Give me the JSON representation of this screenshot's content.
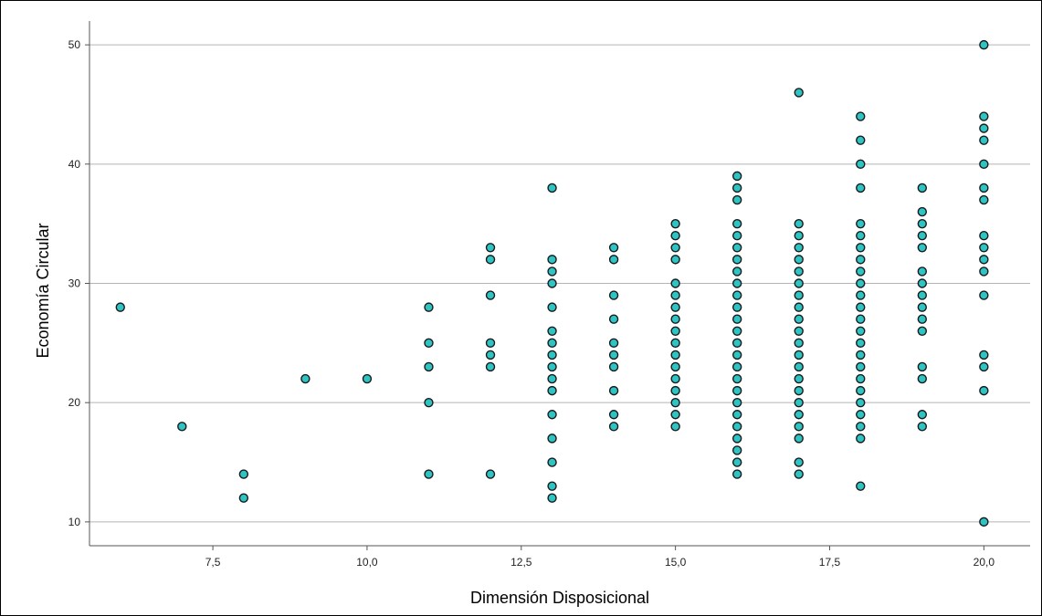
{
  "chart_data": {
    "type": "scatter",
    "title": "",
    "xlabel": "Dimensión Disposicional",
    "ylabel": "Economía Circular",
    "xlim": [
      5.5,
      20.75
    ],
    "ylim": [
      8,
      52
    ],
    "x_ticks": [
      7.5,
      10.0,
      12.5,
      15.0,
      17.5,
      20.0
    ],
    "x_tick_labels": [
      "7,5",
      "10,0",
      "12,5",
      "15,0",
      "17,5",
      "20,0"
    ],
    "y_ticks": [
      10,
      20,
      30,
      40,
      50
    ],
    "y_tick_labels": [
      "10",
      "20",
      "30",
      "40",
      "50"
    ],
    "grid": "horizontal",
    "colors": {
      "marker_fill": "#2ec4c4",
      "marker_edge": "#1a1a1a",
      "grid": "#b4b4b4",
      "axis": "#555555"
    },
    "points": [
      {
        "x": 6,
        "y": 28
      },
      {
        "x": 7,
        "y": 18
      },
      {
        "x": 8,
        "y": 14
      },
      {
        "x": 8,
        "y": 12
      },
      {
        "x": 9,
        "y": 22
      },
      {
        "x": 10,
        "y": 22
      },
      {
        "x": 11,
        "y": 28
      },
      {
        "x": 11,
        "y": 25
      },
      {
        "x": 11,
        "y": 23
      },
      {
        "x": 11,
        "y": 20
      },
      {
        "x": 11,
        "y": 14
      },
      {
        "x": 12,
        "y": 33
      },
      {
        "x": 12,
        "y": 32
      },
      {
        "x": 12,
        "y": 29
      },
      {
        "x": 12,
        "y": 25
      },
      {
        "x": 12,
        "y": 24
      },
      {
        "x": 12,
        "y": 23
      },
      {
        "x": 12,
        "y": 14
      },
      {
        "x": 13,
        "y": 38
      },
      {
        "x": 13,
        "y": 32
      },
      {
        "x": 13,
        "y": 31
      },
      {
        "x": 13,
        "y": 30
      },
      {
        "x": 13,
        "y": 28
      },
      {
        "x": 13,
        "y": 26
      },
      {
        "x": 13,
        "y": 25
      },
      {
        "x": 13,
        "y": 24
      },
      {
        "x": 13,
        "y": 23
      },
      {
        "x": 13,
        "y": 22
      },
      {
        "x": 13,
        "y": 21
      },
      {
        "x": 13,
        "y": 19
      },
      {
        "x": 13,
        "y": 17
      },
      {
        "x": 13,
        "y": 15
      },
      {
        "x": 13,
        "y": 13
      },
      {
        "x": 13,
        "y": 12
      },
      {
        "x": 14,
        "y": 33
      },
      {
        "x": 14,
        "y": 32
      },
      {
        "x": 14,
        "y": 29
      },
      {
        "x": 14,
        "y": 27
      },
      {
        "x": 14,
        "y": 25
      },
      {
        "x": 14,
        "y": 24
      },
      {
        "x": 14,
        "y": 23
      },
      {
        "x": 14,
        "y": 21
      },
      {
        "x": 14,
        "y": 19
      },
      {
        "x": 14,
        "y": 18
      },
      {
        "x": 15,
        "y": 35
      },
      {
        "x": 15,
        "y": 34
      },
      {
        "x": 15,
        "y": 33
      },
      {
        "x": 15,
        "y": 32
      },
      {
        "x": 15,
        "y": 30
      },
      {
        "x": 15,
        "y": 29
      },
      {
        "x": 15,
        "y": 28
      },
      {
        "x": 15,
        "y": 27
      },
      {
        "x": 15,
        "y": 26
      },
      {
        "x": 15,
        "y": 25
      },
      {
        "x": 15,
        "y": 24
      },
      {
        "x": 15,
        "y": 23
      },
      {
        "x": 15,
        "y": 22
      },
      {
        "x": 15,
        "y": 21
      },
      {
        "x": 15,
        "y": 20
      },
      {
        "x": 15,
        "y": 19
      },
      {
        "x": 15,
        "y": 18
      },
      {
        "x": 16,
        "y": 39
      },
      {
        "x": 16,
        "y": 38
      },
      {
        "x": 16,
        "y": 37
      },
      {
        "x": 16,
        "y": 35
      },
      {
        "x": 16,
        "y": 34
      },
      {
        "x": 16,
        "y": 33
      },
      {
        "x": 16,
        "y": 32
      },
      {
        "x": 16,
        "y": 31
      },
      {
        "x": 16,
        "y": 30
      },
      {
        "x": 16,
        "y": 29
      },
      {
        "x": 16,
        "y": 28
      },
      {
        "x": 16,
        "y": 27
      },
      {
        "x": 16,
        "y": 26
      },
      {
        "x": 16,
        "y": 25
      },
      {
        "x": 16,
        "y": 24
      },
      {
        "x": 16,
        "y": 23
      },
      {
        "x": 16,
        "y": 22
      },
      {
        "x": 16,
        "y": 21
      },
      {
        "x": 16,
        "y": 20
      },
      {
        "x": 16,
        "y": 19
      },
      {
        "x": 16,
        "y": 18
      },
      {
        "x": 16,
        "y": 17
      },
      {
        "x": 16,
        "y": 16
      },
      {
        "x": 16,
        "y": 15
      },
      {
        "x": 16,
        "y": 14
      },
      {
        "x": 17,
        "y": 46
      },
      {
        "x": 17,
        "y": 35
      },
      {
        "x": 17,
        "y": 34
      },
      {
        "x": 17,
        "y": 33
      },
      {
        "x": 17,
        "y": 32
      },
      {
        "x": 17,
        "y": 31
      },
      {
        "x": 17,
        "y": 30
      },
      {
        "x": 17,
        "y": 29
      },
      {
        "x": 17,
        "y": 28
      },
      {
        "x": 17,
        "y": 27
      },
      {
        "x": 17,
        "y": 26
      },
      {
        "x": 17,
        "y": 25
      },
      {
        "x": 17,
        "y": 24
      },
      {
        "x": 17,
        "y": 23
      },
      {
        "x": 17,
        "y": 22
      },
      {
        "x": 17,
        "y": 21
      },
      {
        "x": 17,
        "y": 20
      },
      {
        "x": 17,
        "y": 19
      },
      {
        "x": 17,
        "y": 18
      },
      {
        "x": 17,
        "y": 17
      },
      {
        "x": 17,
        "y": 15
      },
      {
        "x": 17,
        "y": 14
      },
      {
        "x": 18,
        "y": 44
      },
      {
        "x": 18,
        "y": 42
      },
      {
        "x": 18,
        "y": 40
      },
      {
        "x": 18,
        "y": 38
      },
      {
        "x": 18,
        "y": 35
      },
      {
        "x": 18,
        "y": 34
      },
      {
        "x": 18,
        "y": 33
      },
      {
        "x": 18,
        "y": 32
      },
      {
        "x": 18,
        "y": 31
      },
      {
        "x": 18,
        "y": 30
      },
      {
        "x": 18,
        "y": 29
      },
      {
        "x": 18,
        "y": 28
      },
      {
        "x": 18,
        "y": 27
      },
      {
        "x": 18,
        "y": 26
      },
      {
        "x": 18,
        "y": 25
      },
      {
        "x": 18,
        "y": 24
      },
      {
        "x": 18,
        "y": 23
      },
      {
        "x": 18,
        "y": 22
      },
      {
        "x": 18,
        "y": 21
      },
      {
        "x": 18,
        "y": 20
      },
      {
        "x": 18,
        "y": 19
      },
      {
        "x": 18,
        "y": 18
      },
      {
        "x": 18,
        "y": 17
      },
      {
        "x": 18,
        "y": 13
      },
      {
        "x": 19,
        "y": 38
      },
      {
        "x": 19,
        "y": 36
      },
      {
        "x": 19,
        "y": 35
      },
      {
        "x": 19,
        "y": 34
      },
      {
        "x": 19,
        "y": 33
      },
      {
        "x": 19,
        "y": 31
      },
      {
        "x": 19,
        "y": 30
      },
      {
        "x": 19,
        "y": 29
      },
      {
        "x": 19,
        "y": 28
      },
      {
        "x": 19,
        "y": 27
      },
      {
        "x": 19,
        "y": 26
      },
      {
        "x": 19,
        "y": 23
      },
      {
        "x": 19,
        "y": 22
      },
      {
        "x": 19,
        "y": 19
      },
      {
        "x": 19,
        "y": 18
      },
      {
        "x": 20,
        "y": 50
      },
      {
        "x": 20,
        "y": 44
      },
      {
        "x": 20,
        "y": 43
      },
      {
        "x": 20,
        "y": 42
      },
      {
        "x": 20,
        "y": 40
      },
      {
        "x": 20,
        "y": 38
      },
      {
        "x": 20,
        "y": 37
      },
      {
        "x": 20,
        "y": 34
      },
      {
        "x": 20,
        "y": 33
      },
      {
        "x": 20,
        "y": 32
      },
      {
        "x": 20,
        "y": 31
      },
      {
        "x": 20,
        "y": 29
      },
      {
        "x": 20,
        "y": 24
      },
      {
        "x": 20,
        "y": 23
      },
      {
        "x": 20,
        "y": 21
      },
      {
        "x": 20,
        "y": 10
      }
    ]
  }
}
